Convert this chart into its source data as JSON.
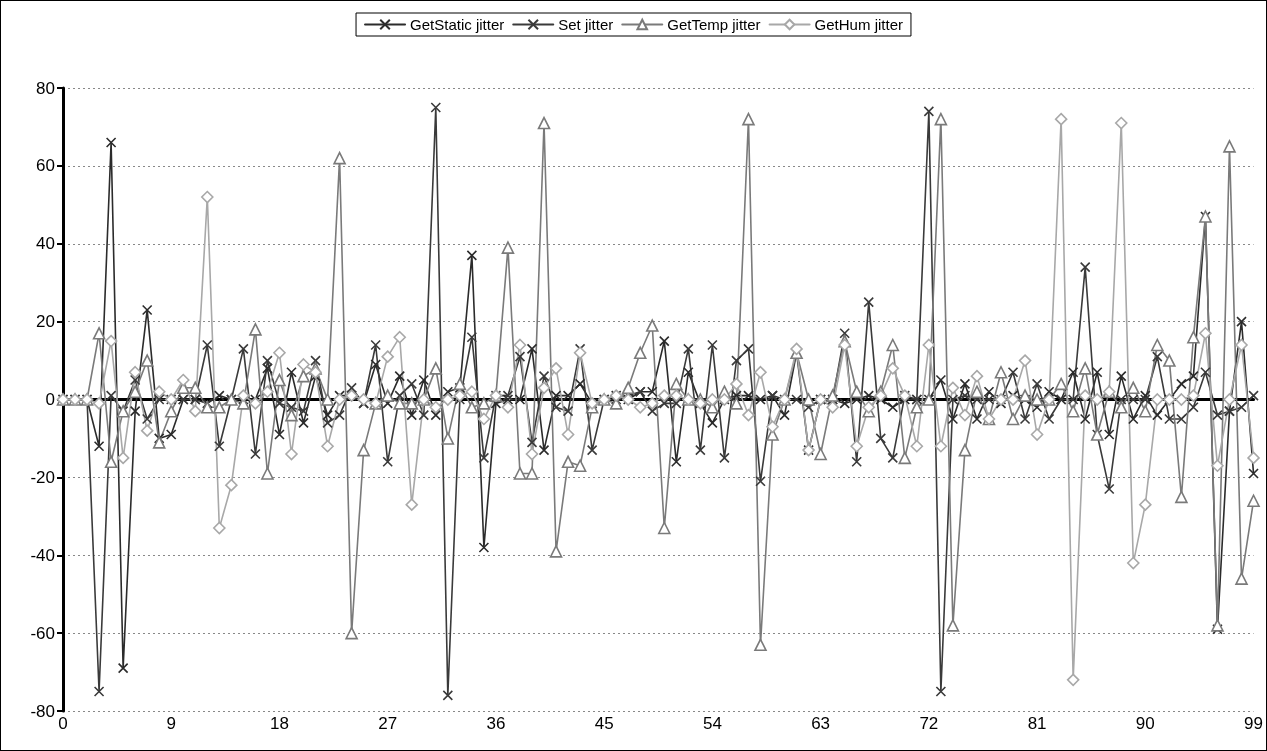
{
  "chart_data": {
    "type": "line",
    "categories": [
      "0",
      null,
      null,
      null,
      null,
      null,
      null,
      null,
      null,
      "9",
      null,
      null,
      null,
      null,
      null,
      null,
      null,
      null,
      "18",
      null,
      null,
      null,
      null,
      null,
      null,
      null,
      null,
      "27",
      null,
      null,
      null,
      null,
      null,
      null,
      null,
      null,
      "36",
      null,
      null,
      null,
      null,
      null,
      null,
      null,
      null,
      "45",
      null,
      null,
      null,
      null,
      null,
      null,
      null,
      null,
      "54",
      null,
      null,
      null,
      null,
      null,
      null,
      null,
      null,
      "63",
      null,
      null,
      null,
      null,
      null,
      null,
      null,
      null,
      "72",
      null,
      null,
      null,
      null,
      null,
      null,
      null,
      null,
      "81",
      null,
      null,
      null,
      null,
      null,
      null,
      null,
      null,
      "90",
      null,
      null,
      null,
      null,
      null,
      null,
      null,
      null,
      "99"
    ],
    "series": [
      {
        "name": "GetStatic jitter",
        "color": "#2b2b2b",
        "marker": "cross",
        "values": [
          0,
          0,
          0,
          -12,
          66,
          -69,
          -3,
          23,
          -10,
          -9,
          0,
          0,
          -1,
          1,
          0,
          0,
          0,
          8,
          -9,
          7,
          -6,
          6,
          -4,
          1,
          1,
          -1,
          9,
          -1,
          6,
          -4,
          5,
          -4,
          2,
          3,
          37,
          -38,
          -1,
          0,
          0,
          13,
          -13,
          1,
          1,
          4,
          -1,
          0,
          1,
          0,
          2,
          2,
          15,
          -16,
          7,
          -1,
          -6,
          0,
          1,
          1,
          0,
          1,
          -4,
          12,
          -13,
          0,
          0,
          -1,
          0,
          1,
          0,
          -2,
          0,
          0,
          0,
          5,
          -5,
          4,
          -5,
          2,
          -1,
          1,
          0,
          -2,
          2,
          0,
          7,
          -5,
          7,
          -9,
          6,
          -5,
          1,
          -4,
          0,
          4,
          6,
          47,
          -59,
          -3,
          20,
          -19
        ]
      },
      {
        "name": "Set jitter",
        "color": "#3a3a3a",
        "marker": "cross",
        "values": [
          0,
          0,
          0,
          -75,
          1,
          -3,
          5,
          -5,
          0,
          0,
          0,
          0,
          14,
          -12,
          0,
          13,
          -14,
          10,
          -1,
          -2,
          -3,
          10,
          -6,
          -4,
          3,
          -1,
          14,
          -16,
          1,
          4,
          -4,
          75,
          -76,
          0,
          16,
          -15,
          1,
          1,
          11,
          -11,
          6,
          -2,
          -3,
          13,
          -13,
          0,
          0,
          1,
          2,
          -3,
          -1,
          -1,
          13,
          -13,
          14,
          -15,
          10,
          13,
          -21,
          1,
          0,
          0,
          -2,
          0,
          0,
          17,
          -16,
          25,
          -10,
          -15,
          1,
          0,
          74,
          -75,
          0,
          1,
          0,
          0,
          0,
          7,
          -5,
          4,
          -5,
          0,
          0,
          34,
          -9,
          -23,
          0,
          0,
          0,
          11,
          -5,
          -5,
          -2,
          7,
          -4,
          -3,
          -2,
          1
        ]
      },
      {
        "name": "GetTemp jitter",
        "color": "#7a7a7a",
        "marker": "triangle",
        "values": [
          0,
          0,
          0,
          17,
          -16,
          -3,
          2,
          10,
          -11,
          -3,
          3,
          3,
          -2,
          -2,
          0,
          -1,
          18,
          -19,
          5,
          -4,
          6,
          8,
          0,
          62,
          -60,
          -13,
          -1,
          1,
          -1,
          -1,
          0,
          8,
          -10,
          4,
          -2,
          -1,
          1,
          39,
          -19,
          -19,
          71,
          -39,
          -16,
          -17,
          -2,
          0,
          -1,
          3,
          12,
          19,
          -33,
          4,
          0,
          0,
          -2,
          2,
          -1,
          72,
          -63,
          -9,
          0,
          12,
          0,
          -14,
          1,
          15,
          2,
          -3,
          2,
          14,
          -15,
          -2,
          0,
          72,
          -58,
          -13,
          2,
          -5,
          7,
          -5,
          1,
          0,
          0,
          4,
          -3,
          8,
          -9,
          2,
          -2,
          3,
          -3,
          14,
          10,
          -25,
          16,
          47,
          -58,
          65,
          -46,
          -26
        ]
      },
      {
        "name": "GetHum jitter",
        "color": "#a8a8a8",
        "marker": "diamond",
        "values": [
          0,
          0,
          0,
          -1,
          15,
          -15,
          7,
          -8,
          2,
          0,
          5,
          -3,
          52,
          -33,
          -22,
          1,
          -1,
          2,
          12,
          -14,
          9,
          7,
          -12,
          0,
          1,
          0,
          -1,
          11,
          16,
          -27,
          0,
          -2,
          0,
          1,
          2,
          -5,
          1,
          -2,
          14,
          -14,
          3,
          8,
          -9,
          12,
          -1,
          0,
          1,
          0,
          -2,
          -1,
          1,
          1,
          0,
          -1,
          0,
          0,
          4,
          -4,
          7,
          -7,
          0,
          13,
          -13,
          0,
          -2,
          14,
          -12,
          -2,
          1,
          8,
          1,
          -12,
          14,
          -12,
          3,
          -4,
          6,
          -5,
          0,
          0,
          10,
          -9,
          0,
          72,
          -72,
          1,
          0,
          2,
          71,
          -42,
          -27,
          0,
          0,
          0,
          1,
          17,
          -17,
          0,
          14,
          -15
        ]
      }
    ],
    "ylim": [
      -80,
      80
    ],
    "yticks": [
      -80,
      -60,
      -40,
      -20,
      0,
      20,
      40,
      60,
      80
    ],
    "grid": "y",
    "legend": "top",
    "line_style": "solid"
  }
}
